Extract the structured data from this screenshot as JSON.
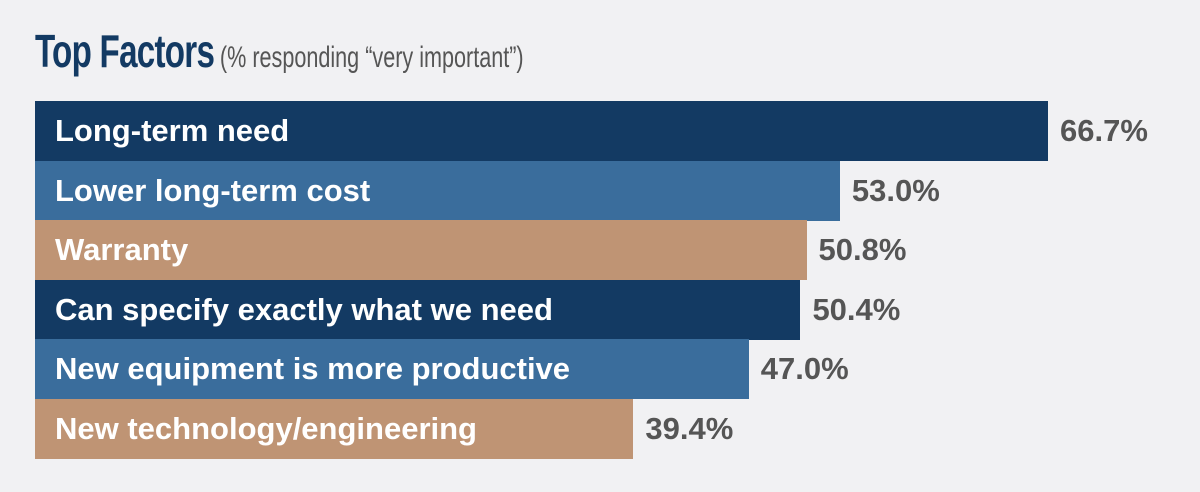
{
  "chart_data": {
    "type": "bar",
    "orientation": "horizontal",
    "title": "Top Factors",
    "subtitle": "(% responding “very important”)",
    "categories": [
      "Long-term need",
      "Lower long-term cost",
      "Warranty",
      "Can specify exactly what we need",
      "New equipment is more productive",
      "New technology/engineering"
    ],
    "values": [
      66.7,
      53.0,
      50.8,
      50.4,
      47.0,
      39.4
    ],
    "value_labels": [
      "66.7%",
      "53.0%",
      "50.8%",
      "50.4%",
      "47.0%",
      "39.4%"
    ],
    "colors": [
      "#133a63",
      "#3a6d9c",
      "#bf9474",
      "#133a63",
      "#3a6d9c",
      "#bf9474"
    ],
    "xlim": [
      0,
      66.7
    ],
    "grid": false
  }
}
